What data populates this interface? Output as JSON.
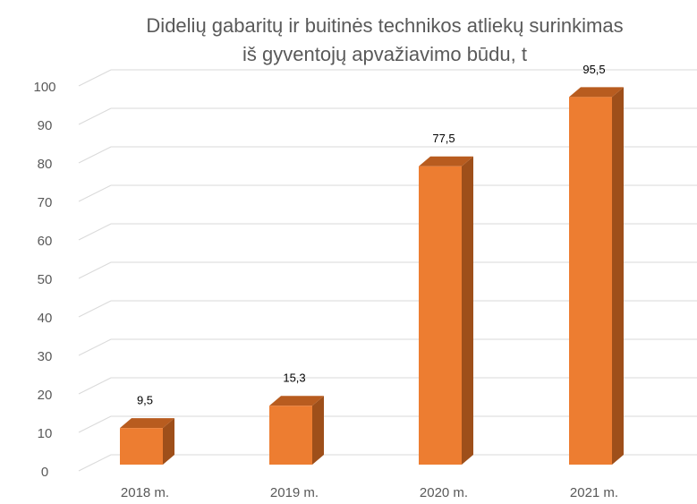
{
  "chart_data": {
    "type": "bar3d",
    "title": [
      "Didelių gabaritų ir buitinės technikos atliekų surinkimas",
      "iš gyventojų apvažiavimo būdu, t"
    ],
    "categories": [
      "2018 m.",
      "2019 m.",
      "2020 m.",
      "2021 m."
    ],
    "values": [
      9.5,
      15.3,
      77.5,
      95.5
    ],
    "value_labels": [
      "9,5",
      "15,3",
      "77,5",
      "95,5"
    ],
    "color": "#ed7d31",
    "ylim": [
      0,
      100
    ],
    "yticks": [
      0,
      10,
      20,
      30,
      40,
      50,
      60,
      70,
      80,
      90,
      100
    ],
    "grid": true
  }
}
